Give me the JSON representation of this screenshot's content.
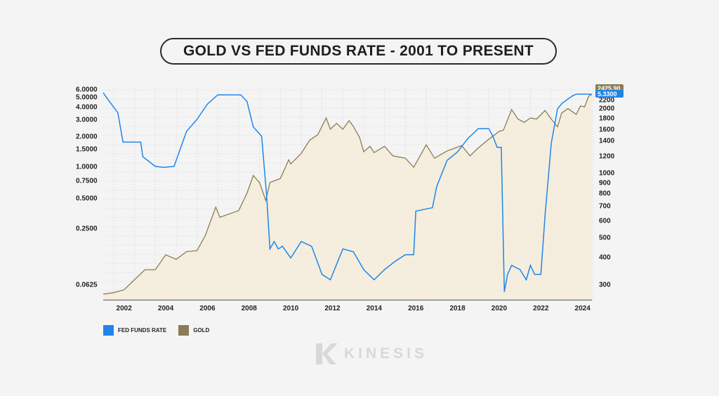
{
  "chart_data": {
    "type": "line",
    "title": "GOLD VS FED FUNDS RATE - 2001 TO PRESENT",
    "x_ticks": [
      "2002",
      "2004",
      "2006",
      "2008",
      "2010",
      "2012",
      "2014",
      "2016",
      "2018",
      "2020",
      "2022",
      "2024"
    ],
    "xlim": [
      2001,
      2024.45
    ],
    "y_left": {
      "scale": "log",
      "ticks": [
        "6.0000",
        "5.0000",
        "4.0000",
        "3.0000",
        "2.0000",
        "1.5000",
        "1.0000",
        "0.7500",
        "0.5000",
        "0.2500",
        "0.0625"
      ]
    },
    "y_right": {
      "scale": "log",
      "ticks": [
        "2200",
        "2000",
        "1800",
        "1600",
        "1400",
        "1200",
        "1000",
        "900",
        "800",
        "700",
        "600",
        "500",
        "400",
        "300"
      ]
    },
    "grid": true,
    "legend_placement": "bottom-left",
    "series": [
      {
        "name": "FED FUNDS RATE",
        "axis": "left",
        "color": "#1f86e8",
        "last_label": "5.3300",
        "x": [
          2001.0,
          2001.3,
          2001.7,
          2001.95,
          2002.8,
          2002.9,
          2003.5,
          2003.9,
          2004.4,
          2004.7,
          2005.0,
          2005.5,
          2006.0,
          2006.5,
          2007.6,
          2007.9,
          2008.2,
          2008.6,
          2008.85,
          2009.0,
          2009.2,
          2009.4,
          2009.6,
          2010.0,
          2010.5,
          2011.0,
          2011.5,
          2011.9,
          2012.5,
          2013.0,
          2013.5,
          2014.0,
          2014.5,
          2015.0,
          2015.5,
          2015.9,
          2016.0,
          2016.8,
          2017.0,
          2017.5,
          2018.0,
          2018.5,
          2019.0,
          2019.5,
          2019.7,
          2019.9,
          2020.1,
          2020.25,
          2020.4,
          2020.6,
          2021.0,
          2021.3,
          2021.5,
          2021.7,
          2022.0,
          2022.2,
          2022.5,
          2022.8,
          2023.0,
          2023.5,
          2023.7,
          2024.45
        ],
        "y": [
          5.5,
          4.5,
          3.5,
          1.75,
          1.75,
          1.25,
          1.0,
          0.98,
          1.0,
          1.5,
          2.25,
          3.0,
          4.25,
          5.25,
          5.25,
          4.5,
          2.5,
          2.0,
          0.5,
          0.15,
          0.18,
          0.15,
          0.16,
          0.12,
          0.18,
          0.16,
          0.08,
          0.07,
          0.15,
          0.14,
          0.09,
          0.07,
          0.09,
          0.11,
          0.13,
          0.13,
          0.37,
          0.4,
          0.65,
          1.15,
          1.4,
          1.9,
          2.4,
          2.4,
          2.0,
          1.55,
          1.55,
          0.05,
          0.08,
          0.1,
          0.09,
          0.07,
          0.1,
          0.08,
          0.08,
          0.33,
          1.7,
          3.8,
          4.3,
          5.1,
          5.33,
          5.33
        ]
      },
      {
        "name": "GOLD",
        "axis": "right",
        "color": "#8a7d55",
        "last_label": "2425.90",
        "x": [
          2001.0,
          2001.5,
          2002.0,
          2002.5,
          2003.0,
          2003.5,
          2004.0,
          2004.5,
          2005.0,
          2005.5,
          2005.9,
          2006.4,
          2006.6,
          2007.0,
          2007.5,
          2007.9,
          2008.2,
          2008.5,
          2008.8,
          2009.0,
          2009.5,
          2009.9,
          2010.0,
          2010.5,
          2010.9,
          2011.3,
          2011.7,
          2011.9,
          2012.2,
          2012.5,
          2012.8,
          2013.0,
          2013.3,
          2013.5,
          2013.8,
          2014.0,
          2014.5,
          2014.9,
          2015.5,
          2015.9,
          2016.5,
          2016.9,
          2017.5,
          2017.9,
          2018.2,
          2018.6,
          2019.0,
          2019.5,
          2019.8,
          2020.0,
          2020.2,
          2020.6,
          2020.9,
          2021.2,
          2021.5,
          2021.8,
          2022.2,
          2022.5,
          2022.8,
          2023.0,
          2023.3,
          2023.7,
          2023.9,
          2024.1,
          2024.3,
          2024.45
        ],
        "y": [
          265,
          270,
          280,
          315,
          350,
          350,
          410,
          390,
          425,
          430,
          510,
          690,
          620,
          640,
          665,
          800,
          970,
          900,
          740,
          900,
          940,
          1150,
          1100,
          1230,
          1400,
          1500,
          1800,
          1600,
          1700,
          1600,
          1750,
          1650,
          1450,
          1250,
          1320,
          1240,
          1320,
          1200,
          1170,
          1060,
          1340,
          1170,
          1260,
          1300,
          1330,
          1200,
          1300,
          1420,
          1500,
          1560,
          1580,
          1970,
          1780,
          1720,
          1800,
          1780,
          1950,
          1780,
          1640,
          1900,
          1990,
          1870,
          2050,
          2030,
          2350,
          2425.9
        ]
      }
    ]
  },
  "legend": {
    "items": [
      {
        "label": "FED FUNDS RATE",
        "color": "#1f86e8"
      },
      {
        "label": "GOLD",
        "color": "#8a7d55"
      }
    ]
  },
  "brand": {
    "name": "KINESIS"
  }
}
